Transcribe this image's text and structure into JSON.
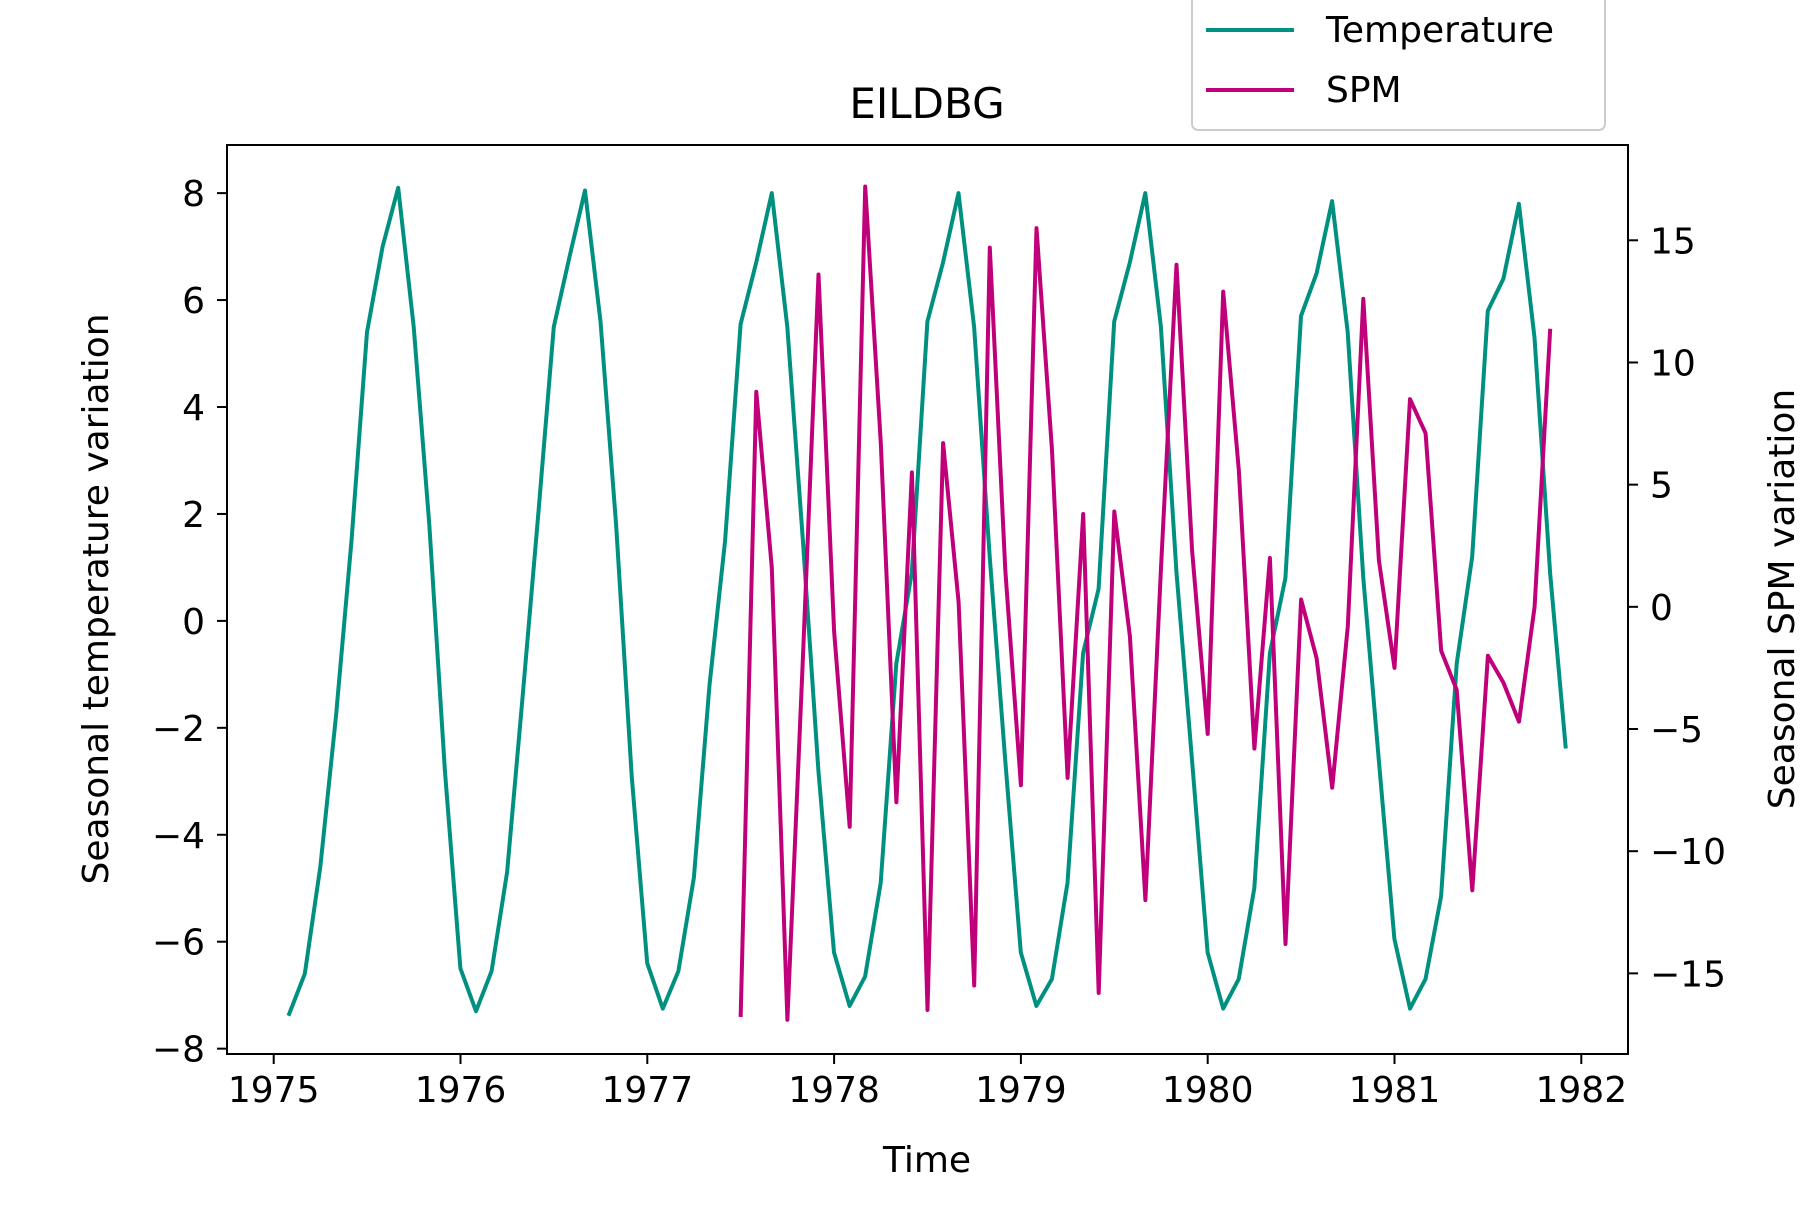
{
  "chart_data": {
    "type": "line",
    "title": "EILDBG",
    "xlabel": "Time",
    "ylabel_left": "Seasonal temperature variation",
    "ylabel_right": "Seasonal SPM variation",
    "xlim": [
      1974.75,
      1982.25
    ],
    "ylim_left": [
      -8.1,
      8.9
    ],
    "ylim_right": [
      -18.3,
      18.9
    ],
    "x_ticks": [
      1975,
      1976,
      1977,
      1978,
      1979,
      1980,
      1981,
      1982
    ],
    "x_tick_labels": [
      "1975",
      "1976",
      "1977",
      "1978",
      "1979",
      "1980",
      "1981",
      "1982"
    ],
    "y_left_ticks": [
      8,
      6,
      4,
      2,
      0,
      -2,
      -4,
      -6,
      -8
    ],
    "y_left_tick_labels": [
      "8",
      "6",
      "4",
      "2",
      "0",
      "−2",
      "−4",
      "−6",
      "−8"
    ],
    "y_right_ticks": [
      15,
      10,
      5,
      0,
      -5,
      -10,
      -15
    ],
    "y_right_tick_labels": [
      "15",
      "10",
      "5",
      "0",
      "−5",
      "−10",
      "−15"
    ],
    "grid": false,
    "legend_position": "top-right, above plot",
    "series": [
      {
        "name": "Temperature",
        "axis": "left",
        "color": "#009080",
        "x_start": 1975.083,
        "x_step": 0.08333,
        "values": [
          -7.35,
          -6.6,
          -4.6,
          -1.8,
          1.5,
          5.4,
          7.0,
          8.1,
          5.5,
          1.8,
          -2.8,
          -6.5,
          -7.3,
          -6.55,
          -4.7,
          -1.4,
          2.0,
          5.5,
          6.8,
          8.05,
          5.6,
          1.8,
          -2.9,
          -6.4,
          -7.25,
          -6.55,
          -4.8,
          -1.2,
          1.5,
          5.55,
          6.7,
          8.0,
          5.5,
          1.5,
          -2.8,
          -6.2,
          -7.2,
          -6.65,
          -4.9,
          -0.8,
          0.9,
          5.6,
          6.7,
          8.0,
          5.5,
          1.2,
          -2.6,
          -6.2,
          -7.2,
          -6.7,
          -4.9,
          -0.6,
          0.6,
          5.6,
          6.7,
          8.0,
          5.5,
          0.9,
          -2.6,
          -6.2,
          -7.25,
          -6.7,
          -5.0,
          -0.6,
          0.8,
          5.7,
          6.5,
          7.85,
          5.4,
          0.8,
          -2.6,
          -5.95,
          -7.25,
          -6.7,
          -5.15,
          -0.8,
          1.2,
          5.8,
          6.4,
          7.8,
          5.3,
          0.9,
          -2.35
        ]
      },
      {
        "name": "SPM",
        "axis": "right",
        "color": "#c0007a",
        "x_start": 1977.5,
        "x_step": 0.08333,
        "values": [
          -16.7,
          8.8,
          1.6,
          -16.9,
          -2.0,
          13.6,
          -1.0,
          -9.0,
          17.2,
          6.7,
          -8.0,
          5.5,
          -16.5,
          6.7,
          0.2,
          -15.5,
          14.7,
          1.5,
          -7.3,
          15.5,
          6.4,
          -7.0,
          3.8,
          -15.8,
          3.9,
          -1.2,
          -12.0,
          1.6,
          14.0,
          2.3,
          -5.2,
          12.9,
          5.6,
          -5.8,
          2.0,
          -13.8,
          0.3,
          -2.1,
          -7.4,
          -0.8,
          12.6,
          1.9,
          -2.5,
          8.5,
          7.1,
          -1.8,
          -3.4,
          -11.6,
          -2.0,
          -3.1,
          -4.7,
          0.0,
          11.3
        ]
      }
    ]
  }
}
